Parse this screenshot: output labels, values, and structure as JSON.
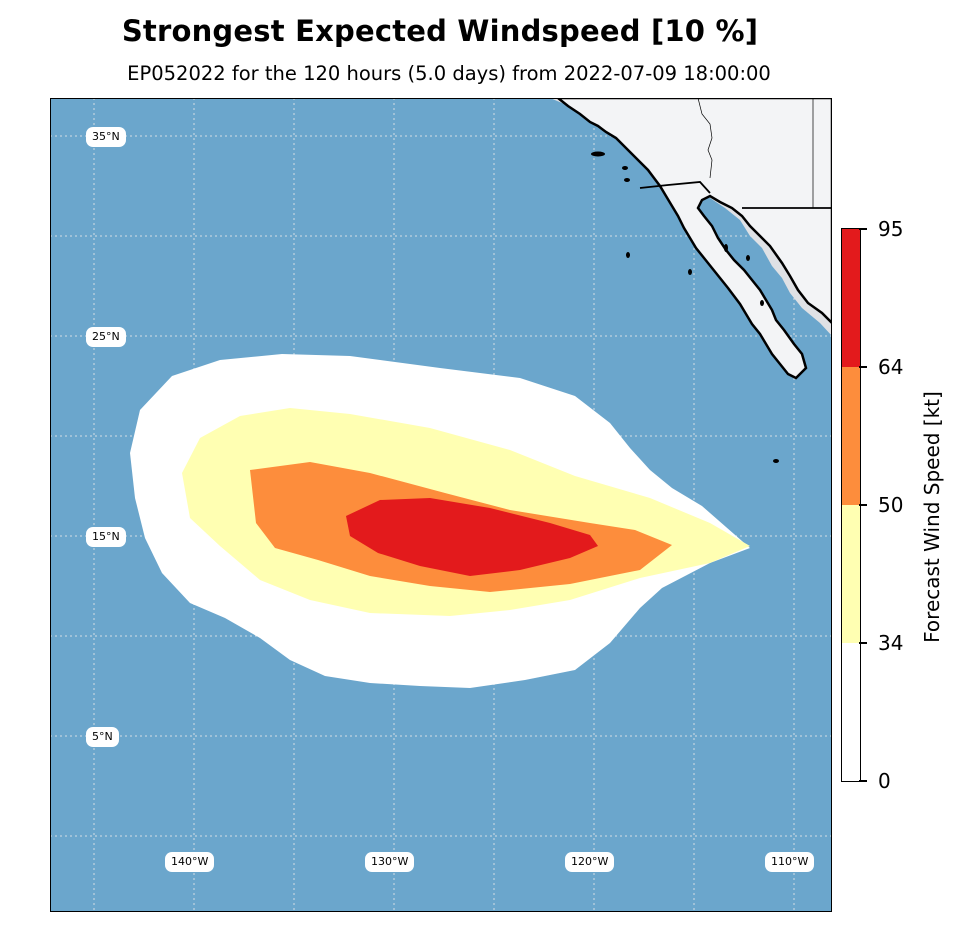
{
  "figure": {
    "title": "Strongest Expected Windspeed [10 %]",
    "subtitle": "EP052022 for the 120 hours (5.0 days) from 2022-07-09 18:00:00"
  },
  "map": {
    "ocean_color": "#6ba6cc",
    "land_color": "#f3f4f6",
    "latitude_labels": [
      "35°N",
      "25°N",
      "15°N",
      "5°N"
    ],
    "longitude_labels": [
      "140°W",
      "130°W",
      "120°W",
      "110°W"
    ]
  },
  "legend": {
    "title": "Forecast Wind Speed [kt]",
    "ticks": [
      "95",
      "64",
      "50",
      "34",
      "0"
    ],
    "bins": [
      {
        "from": 0,
        "to": 34,
        "color": "#ffffff"
      },
      {
        "from": 34,
        "to": 50,
        "color": "#ffffb2"
      },
      {
        "from": 50,
        "to": 64,
        "color": "#fd8d3c"
      },
      {
        "from": 64,
        "to": 95,
        "color": "#e31a1c"
      }
    ]
  }
}
